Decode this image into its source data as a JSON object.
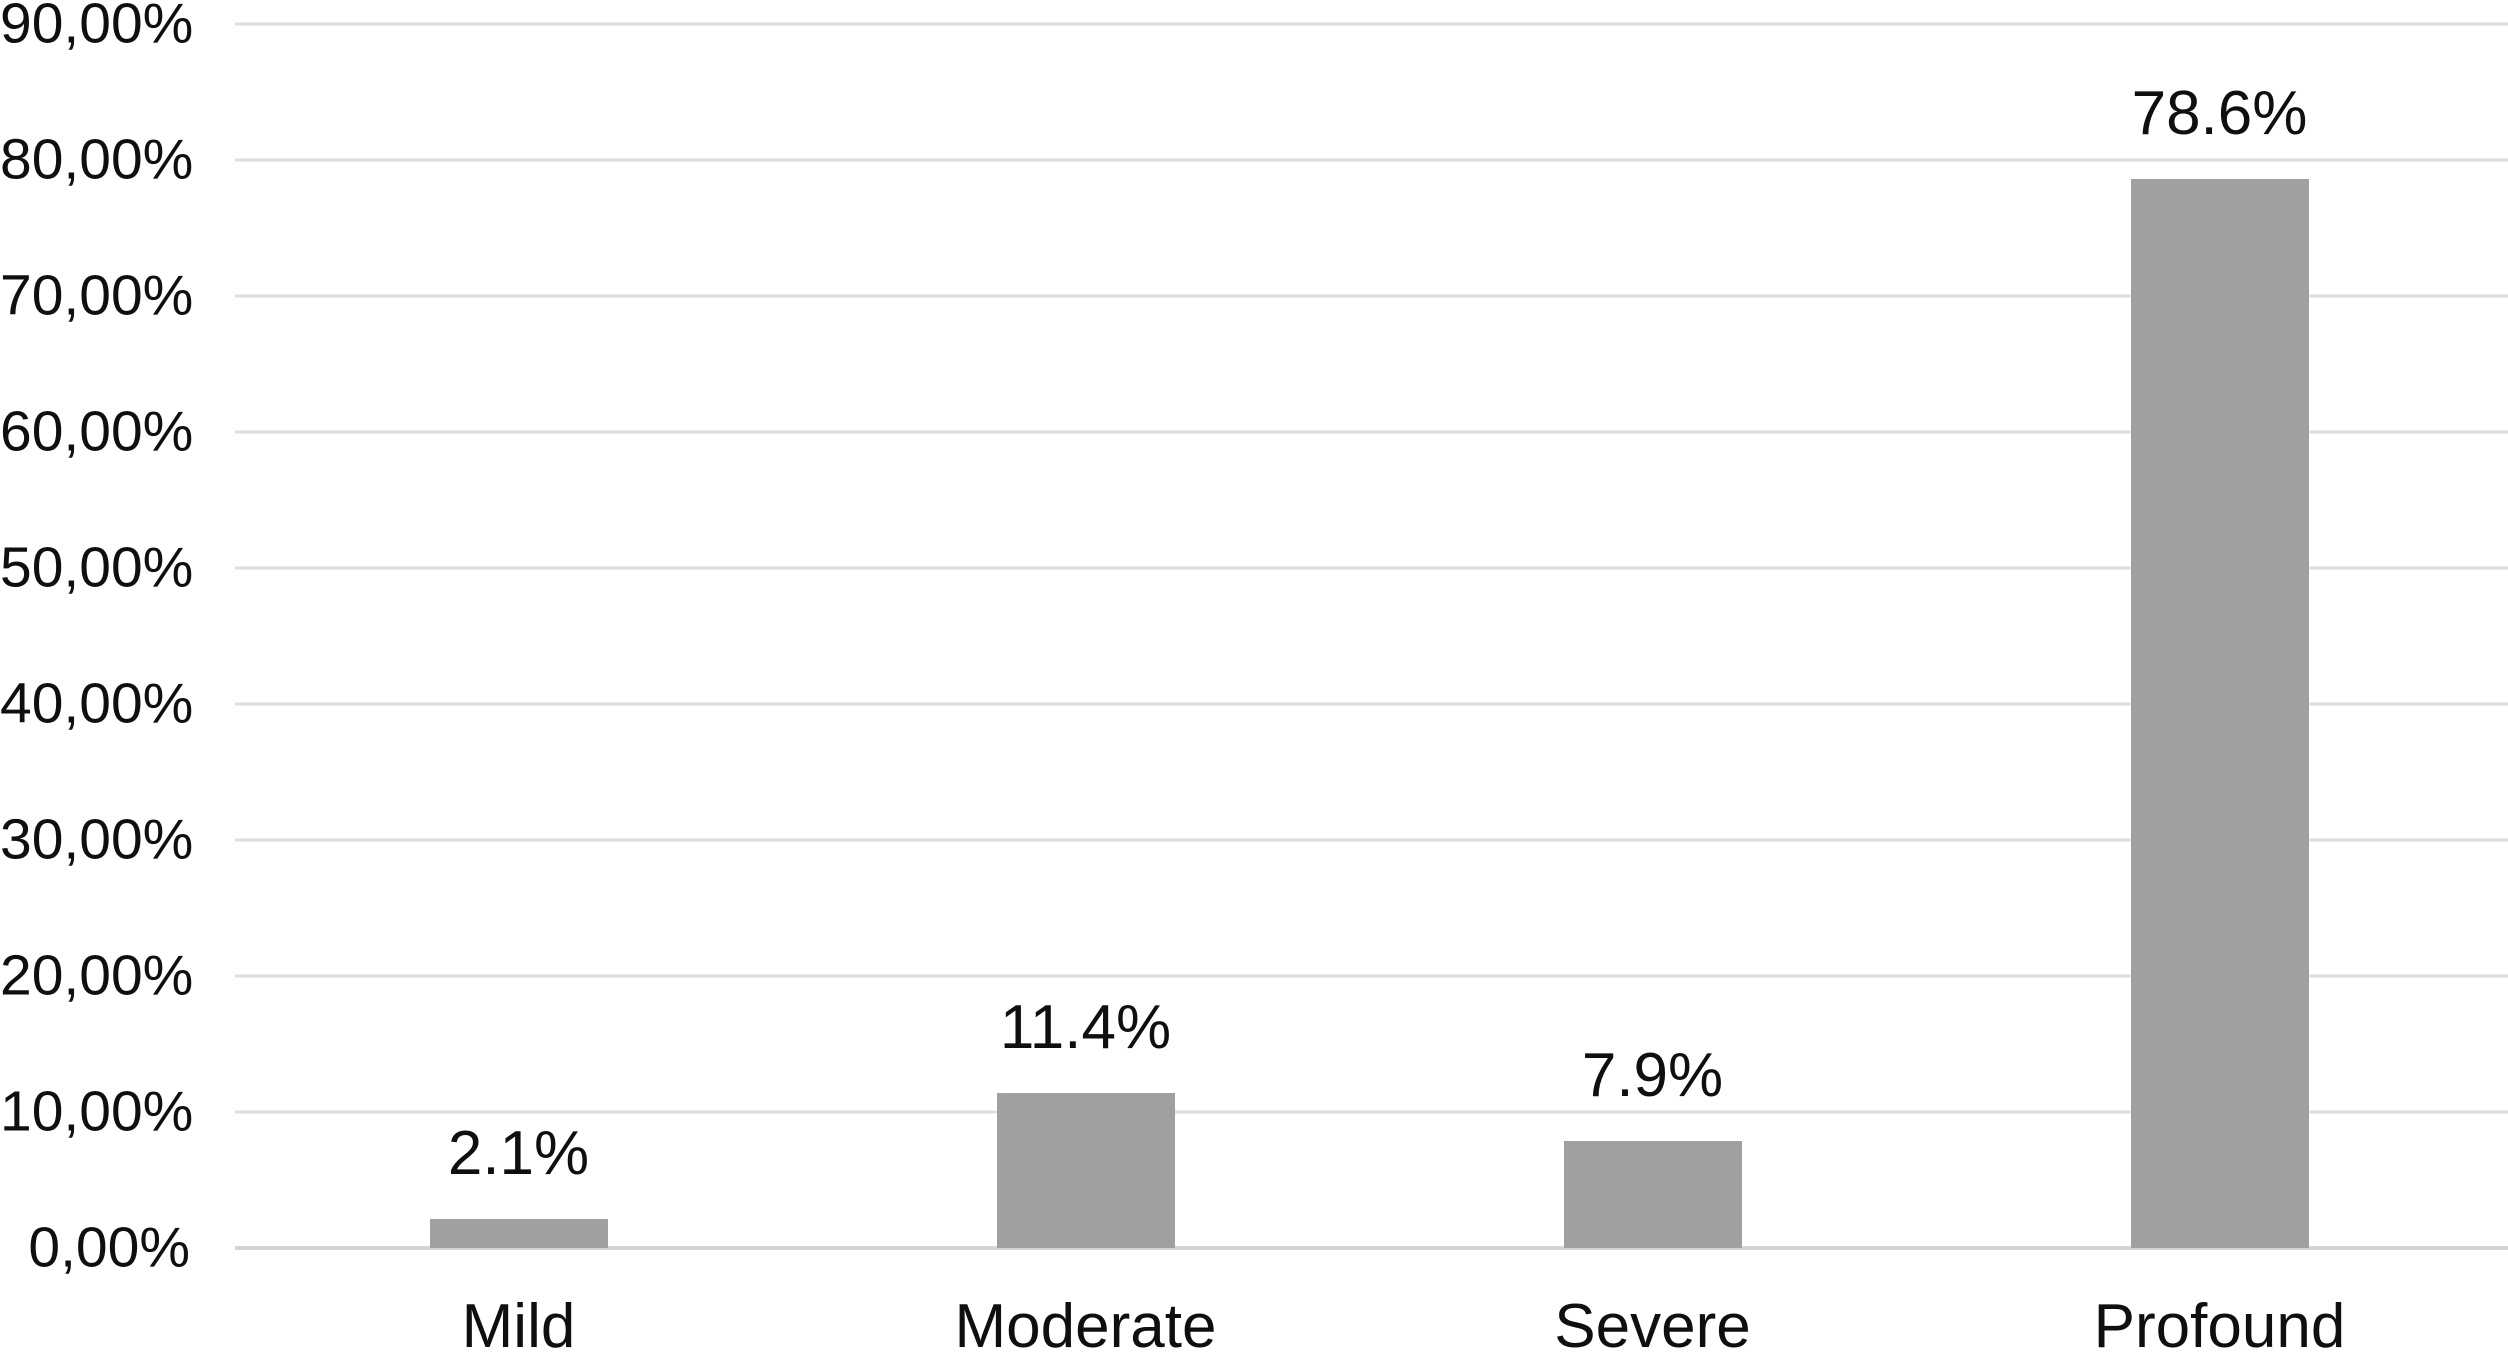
{
  "chart_data": {
    "type": "bar",
    "title": "",
    "xlabel": "",
    "ylabel": "",
    "categories": [
      "Mild",
      "Moderate",
      "Severe",
      "Profound"
    ],
    "values": [
      2.1,
      11.4,
      7.9,
      78.6
    ],
    "data_labels": [
      "2.1%",
      "11.4%",
      "7.9%",
      "78.6%"
    ],
    "y_axis": {
      "tick_labels": [
        "90,00%",
        "80,00%",
        "70,00%",
        "60,00%",
        "50,00%",
        "40,00%",
        "30,00%",
        "20,00%",
        "10,00%",
        "0,00%"
      ],
      "tick_values": [
        90,
        80,
        70,
        60,
        50,
        40,
        30,
        20,
        10,
        0
      ]
    },
    "ylim": [
      0,
      90
    ],
    "grid": true,
    "legend": false,
    "colors": {
      "bar": "#a2a09e",
      "gridline": "#dedede",
      "axis_line": "#d5d5d5",
      "text": "#0f0f0f",
      "background": "#ffffff"
    }
  }
}
